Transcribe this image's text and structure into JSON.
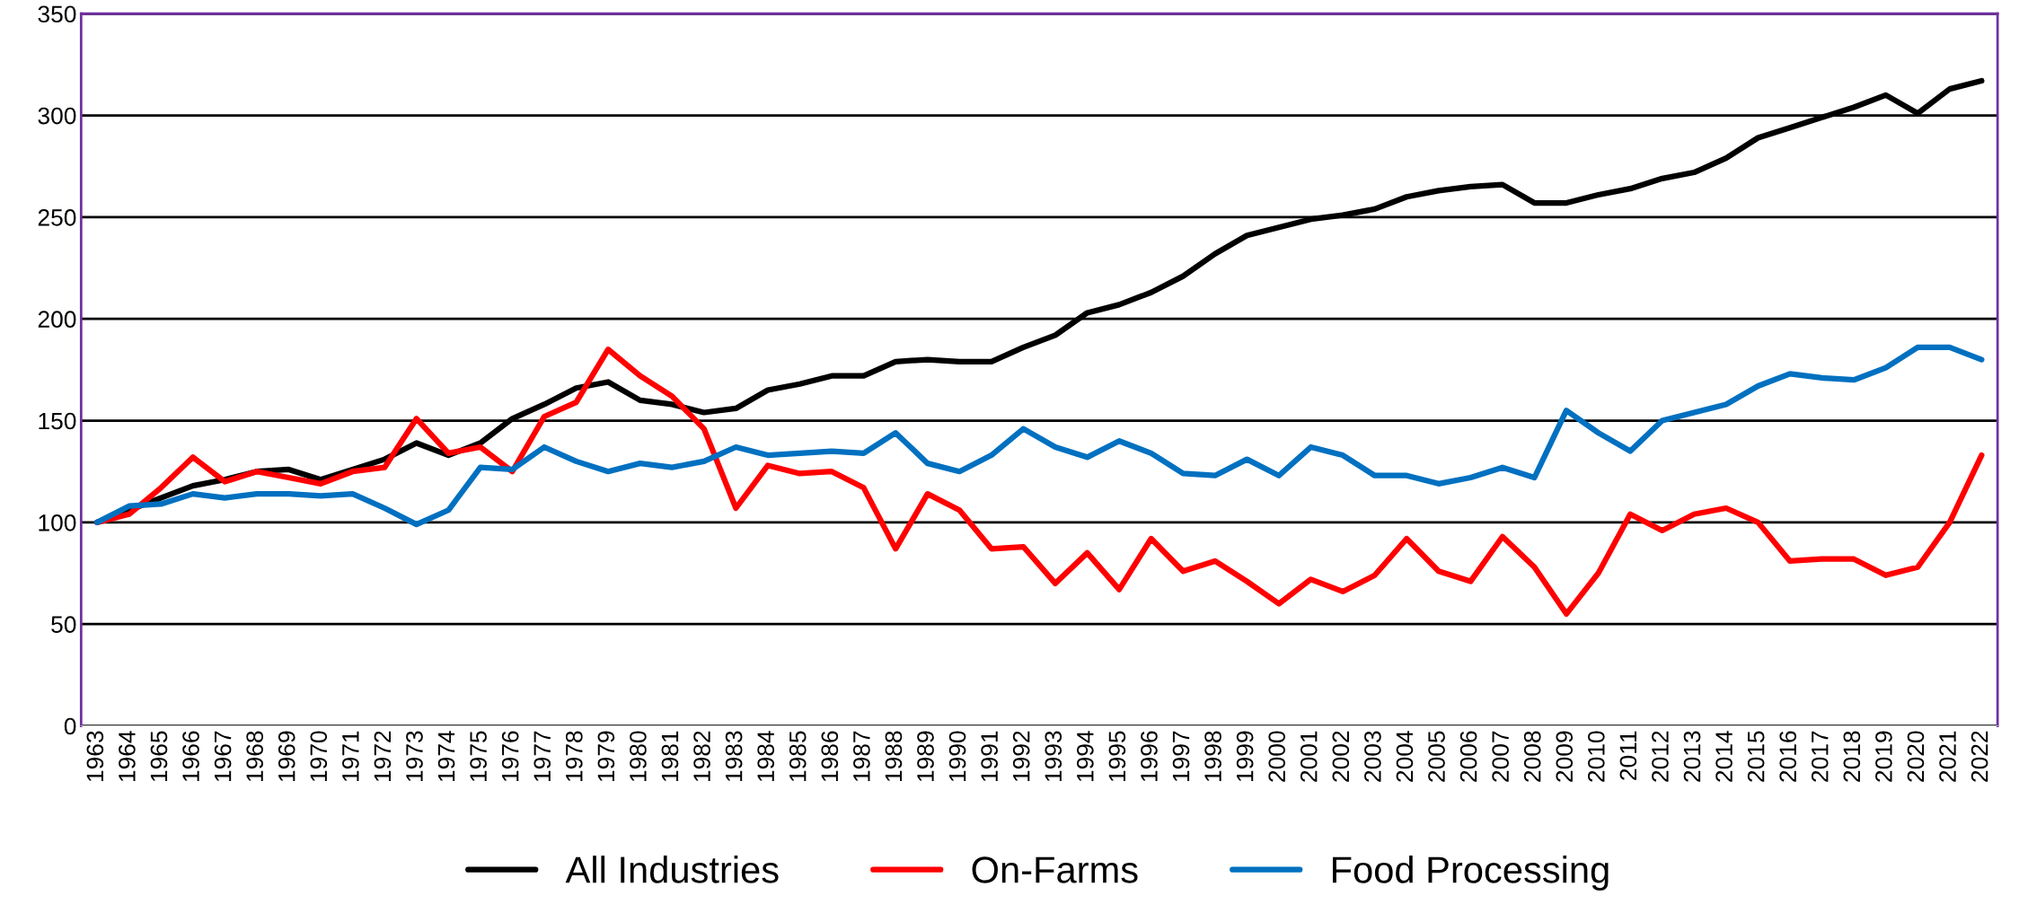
{
  "chart_data": {
    "type": "line",
    "categories": [
      "1963",
      "1964",
      "1965",
      "1966",
      "1967",
      "1968",
      "1969",
      "1970",
      "1971",
      "1972",
      "1973",
      "1974",
      "1975",
      "1976",
      "1977",
      "1978",
      "1979",
      "1980",
      "1981",
      "1982",
      "1983",
      "1984",
      "1985",
      "1986",
      "1987",
      "1988",
      "1989",
      "1990",
      "1991",
      "1992",
      "1993",
      "1994",
      "1995",
      "1996",
      "1997",
      "1998",
      "1999",
      "2000",
      "2001",
      "2002",
      "2003",
      "2004",
      "2005",
      "2006",
      "2007",
      "2008",
      "2009",
      "2010",
      "2011",
      "2012",
      "2013",
      "2014",
      "2015",
      "2016",
      "2017",
      "2018",
      "2019",
      "2020",
      "2021",
      "2022"
    ],
    "series": [
      {
        "name": "All Industries",
        "color": "#000000",
        "values": [
          100,
          106,
          112,
          118,
          121,
          125,
          126,
          121,
          126,
          131,
          139,
          133,
          139,
          151,
          158,
          166,
          169,
          160,
          158,
          154,
          156,
          165,
          168,
          172,
          172,
          179,
          180,
          179,
          179,
          186,
          192,
          203,
          207,
          213,
          221,
          232,
          241,
          245,
          249,
          251,
          254,
          260,
          263,
          265,
          266,
          257,
          257,
          261,
          264,
          269,
          272,
          279,
          289,
          294,
          299,
          304,
          310,
          301,
          313,
          317
        ]
      },
      {
        "name": "On-Farms",
        "color": "#ff0000",
        "values": [
          100,
          104,
          117,
          132,
          120,
          125,
          122,
          119,
          125,
          127,
          151,
          134,
          137,
          125,
          152,
          159,
          185,
          172,
          162,
          146,
          107,
          128,
          124,
          125,
          117,
          87,
          114,
          106,
          87,
          88,
          70,
          85,
          67,
          92,
          76,
          81,
          71,
          60,
          72,
          66,
          74,
          92,
          76,
          71,
          93,
          78,
          55,
          75,
          104,
          96,
          104,
          107,
          100,
          81,
          82,
          82,
          74,
          78,
          100,
          133
        ]
      },
      {
        "name": "Food Processing",
        "color": "#0070c0",
        "values": [
          100,
          108,
          109,
          114,
          112,
          114,
          114,
          113,
          114,
          107,
          99,
          106,
          127,
          126,
          137,
          130,
          125,
          129,
          127,
          130,
          137,
          133,
          134,
          135,
          134,
          144,
          129,
          125,
          133,
          146,
          137,
          132,
          140,
          134,
          124,
          123,
          131,
          123,
          137,
          133,
          123,
          123,
          119,
          122,
          127,
          122,
          155,
          144,
          135,
          150,
          154,
          158,
          167,
          173,
          171,
          170,
          176,
          186,
          186,
          180
        ]
      }
    ],
    "ylim": [
      0,
      350
    ],
    "yticks": [
      0,
      50,
      100,
      150,
      200,
      250,
      300,
      350
    ],
    "grid": "y",
    "legend": "bottom",
    "marker": "none",
    "line_style": "solid"
  }
}
